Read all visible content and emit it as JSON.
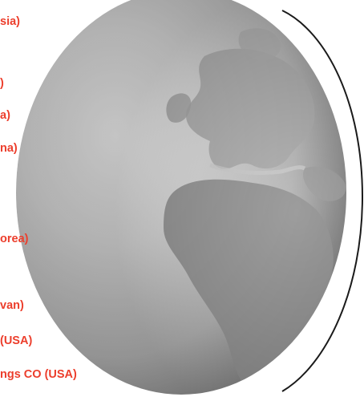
{
  "labels": [
    "sia)",
    ")",
    "a)",
    "na)",
    "orea)",
    "van)",
    " (USA)",
    "ngs CO (USA)"
  ],
  "colors": {
    "label_text": "#ec3e2c",
    "outline": "#1a1a1a",
    "globe_light": "#f2f2f2",
    "globe_mid": "#b9b9b9",
    "globe_dark": "#8a8a8a"
  },
  "icons": [
    "globe-image"
  ]
}
